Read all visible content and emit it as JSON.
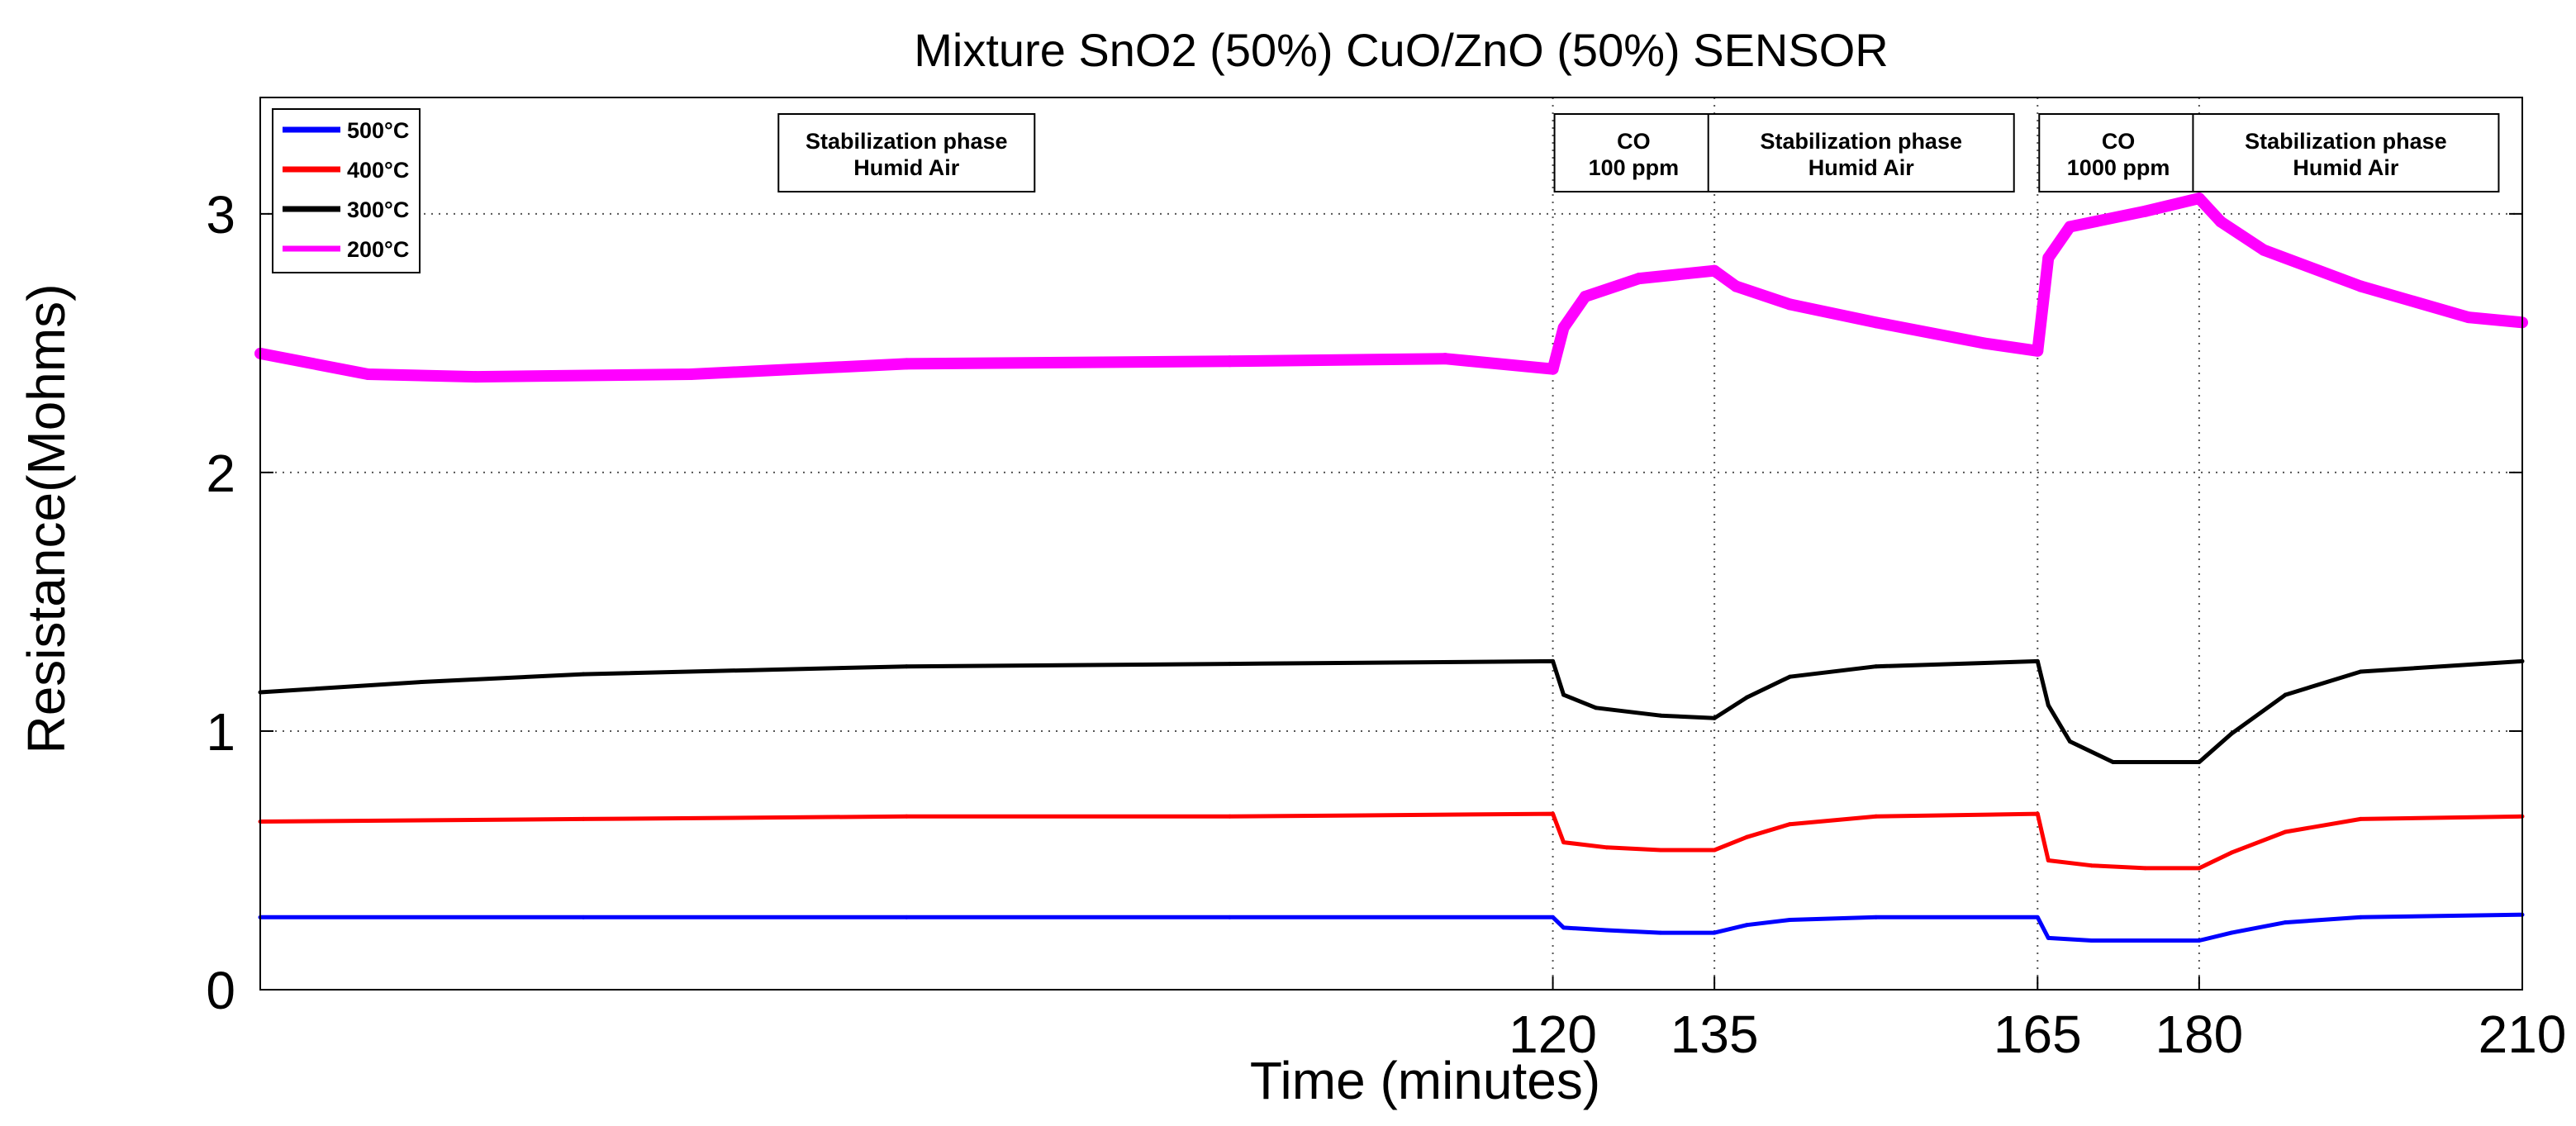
{
  "chart_data": {
    "type": "line",
    "title": "Mixture SnO2 (50%) CuO/ZnO (50%) SENSOR",
    "xlabel": "Time (minutes)",
    "ylabel": "Resistance(Mohms)",
    "xlim": [
      0,
      210
    ],
    "ylim": [
      0,
      3.45
    ],
    "x_ticks": [
      120,
      135,
      165,
      180,
      210
    ],
    "y_ticks": [
      0,
      1,
      2,
      3
    ],
    "grid": true,
    "legend_position": "top-left",
    "phase_boundaries": [
      120,
      135,
      165,
      180
    ],
    "phases": [
      {
        "x_start": 0,
        "x_end": 120,
        "lines": [
          "Stabilization phase",
          "Humid Air"
        ]
      },
      {
        "x_start": 120,
        "x_end": 135,
        "lines": [
          "CO",
          "100 ppm"
        ]
      },
      {
        "x_start": 135,
        "x_end": 165,
        "lines": [
          "Stabilization phase",
          "Humid Air"
        ]
      },
      {
        "x_start": 165,
        "x_end": 180,
        "lines": [
          "CO",
          "1000 ppm"
        ]
      },
      {
        "x_start": 180,
        "x_end": 210,
        "lines": [
          "Stabilization phase",
          "Humid Air"
        ]
      }
    ],
    "series": [
      {
        "name": "500°C",
        "color": "#0000ff",
        "x": [
          0,
          30,
          60,
          90,
          120,
          121,
          125,
          130,
          135,
          138,
          142,
          150,
          165,
          166,
          170,
          175,
          180,
          183,
          188,
          195,
          210
        ],
        "y": [
          0.28,
          0.28,
          0.28,
          0.28,
          0.28,
          0.24,
          0.23,
          0.22,
          0.22,
          0.25,
          0.27,
          0.28,
          0.28,
          0.2,
          0.19,
          0.19,
          0.19,
          0.22,
          0.26,
          0.28,
          0.29
        ]
      },
      {
        "name": "400°C",
        "color": "#ff0000",
        "x": [
          0,
          30,
          60,
          90,
          120,
          121,
          125,
          130,
          135,
          138,
          142,
          150,
          165,
          166,
          170,
          175,
          180,
          183,
          188,
          195,
          210
        ],
        "y": [
          0.65,
          0.66,
          0.67,
          0.67,
          0.68,
          0.57,
          0.55,
          0.54,
          0.54,
          0.59,
          0.64,
          0.67,
          0.68,
          0.5,
          0.48,
          0.47,
          0.47,
          0.53,
          0.61,
          0.66,
          0.67
        ]
      },
      {
        "name": "300°C",
        "color": "#000000",
        "x": [
          0,
          15,
          30,
          60,
          90,
          120,
          121,
          124,
          130,
          135,
          138,
          142,
          150,
          165,
          166,
          168,
          172,
          180,
          183,
          188,
          195,
          210
        ],
        "y": [
          1.15,
          1.19,
          1.22,
          1.25,
          1.26,
          1.27,
          1.14,
          1.09,
          1.06,
          1.05,
          1.13,
          1.21,
          1.25,
          1.27,
          1.1,
          0.96,
          0.88,
          0.88,
          0.99,
          1.14,
          1.23,
          1.27
        ]
      },
      {
        "name": "200°C",
        "color": "#ff00ff",
        "x": [
          0,
          10,
          20,
          40,
          60,
          90,
          110,
          120,
          121,
          123,
          128,
          135,
          137,
          142,
          150,
          160,
          165,
          166,
          168,
          175,
          180,
          182,
          186,
          195,
          205,
          210
        ],
        "y": [
          2.46,
          2.38,
          2.37,
          2.38,
          2.42,
          2.43,
          2.44,
          2.4,
          2.56,
          2.68,
          2.75,
          2.78,
          2.72,
          2.65,
          2.58,
          2.5,
          2.47,
          2.83,
          2.95,
          3.01,
          3.06,
          2.97,
          2.86,
          2.72,
          2.6,
          2.58
        ]
      }
    ]
  }
}
